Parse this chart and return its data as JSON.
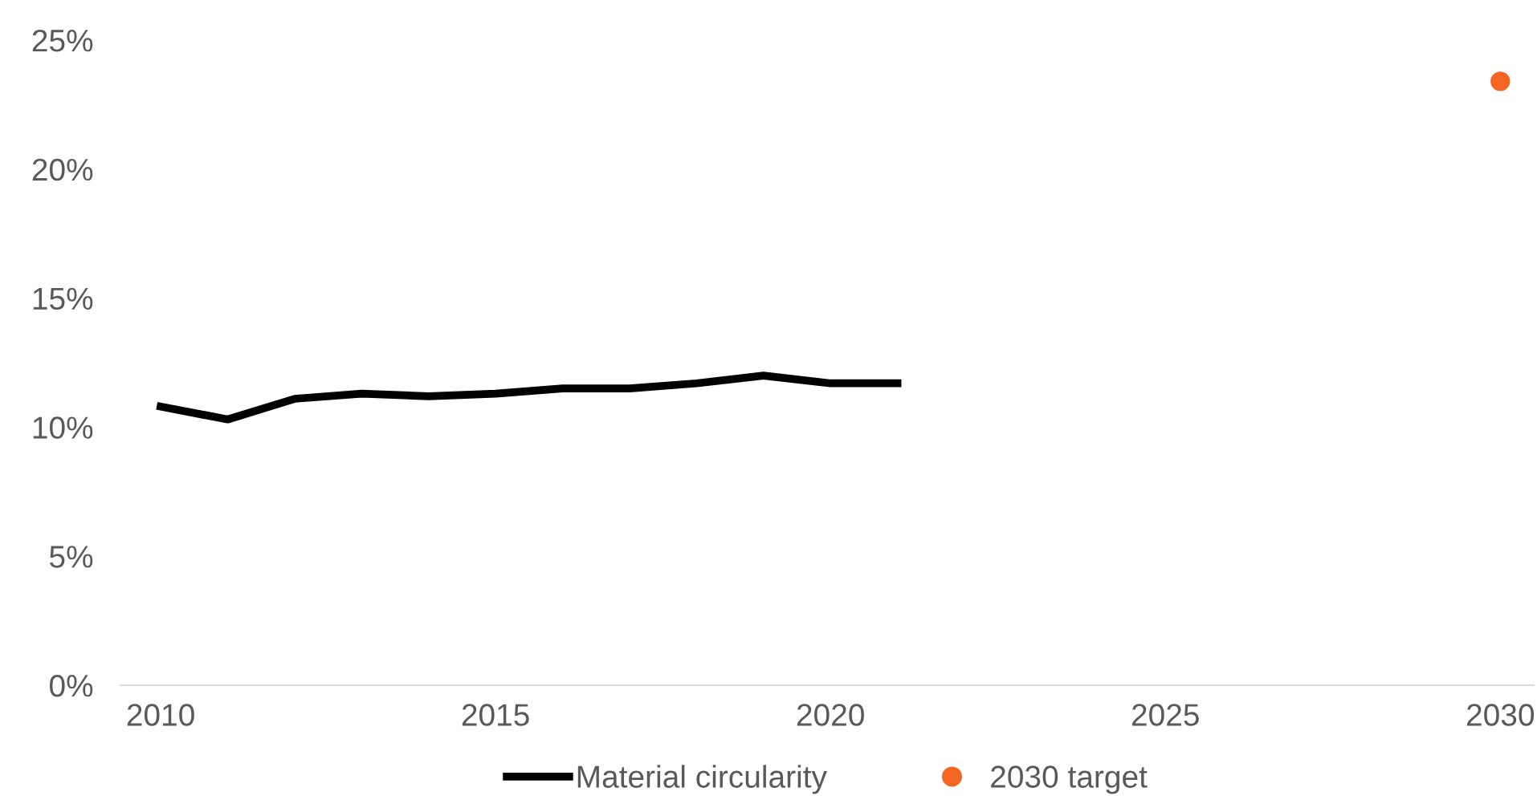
{
  "chart_data": {
    "type": "line",
    "x": [
      2010,
      2011,
      2012,
      2013,
      2014,
      2015,
      2016,
      2017,
      2018,
      2019,
      2020,
      2021
    ],
    "series": [
      {
        "name": "Material circularity",
        "color": "#000000",
        "values": [
          10.8,
          10.3,
          11.1,
          11.3,
          11.2,
          11.3,
          11.5,
          11.5,
          11.7,
          12.0,
          11.7,
          11.7
        ]
      },
      {
        "name": "2030 target",
        "type": "scatter",
        "color": "#f26522",
        "x": [
          2030
        ],
        "values": [
          23.4
        ],
        "marker": "circle"
      }
    ],
    "xlim": [
      2009.4,
      2030.5
    ],
    "xticks": [
      2010,
      2015,
      2020,
      2025,
      2030
    ],
    "ylim": [
      0,
      25
    ],
    "yticks": [
      {
        "value": 0,
        "label": "0%"
      },
      {
        "value": 5,
        "label": "5%"
      },
      {
        "value": 10,
        "label": "10%"
      },
      {
        "value": 15,
        "label": "15%"
      },
      {
        "value": 20,
        "label": "20%"
      },
      {
        "value": 25,
        "label": "25%"
      }
    ],
    "legend": "bottom",
    "grid": false
  }
}
